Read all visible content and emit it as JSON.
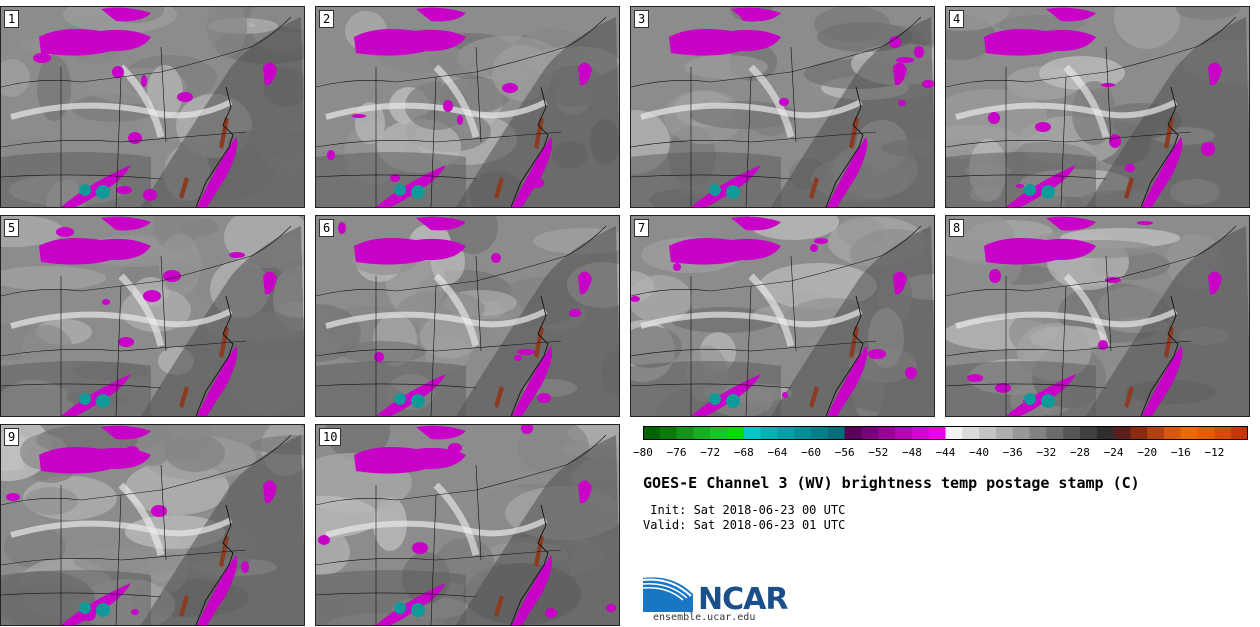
{
  "panels": [
    {
      "label": "1"
    },
    {
      "label": "2"
    },
    {
      "label": "3"
    },
    {
      "label": "4"
    },
    {
      "label": "5"
    },
    {
      "label": "6"
    },
    {
      "label": "7"
    },
    {
      "label": "8"
    },
    {
      "label": "9"
    },
    {
      "label": "10"
    }
  ],
  "colorbar": {
    "colors": [
      "#006400",
      "#0b7a0b",
      "#12931a",
      "#19ad22",
      "#14c82a",
      "#00dd00",
      "#00c8c8",
      "#00b3b3",
      "#00a0a8",
      "#008f99",
      "#007f88",
      "#006e78",
      "#5a005a",
      "#7a007a",
      "#99009a",
      "#b800b8",
      "#d400d4",
      "#ee00ee",
      "#f2f2f2",
      "#dadada",
      "#c4c4c4",
      "#aeaeae",
      "#989898",
      "#828282",
      "#6c6c6c",
      "#565656",
      "#404040",
      "#2e2e2e",
      "#5a1e1e",
      "#8a2b12",
      "#b44112",
      "#d65a0a",
      "#ea6a00",
      "#e85a00",
      "#d84a00",
      "#c43700"
    ],
    "ticks": [
      "−80",
      "−76",
      "−72",
      "−68",
      "−64",
      "−60",
      "−56",
      "−52",
      "−48",
      "−44",
      "−40",
      "−36",
      "−32",
      "−28",
      "−24",
      "−20",
      "−16",
      "−12"
    ]
  },
  "title": "GOES-E Channel 3 (WV) brightness temp postage stamp (C)",
  "init": " Init: Sat 2018-06-23 00 UTC",
  "valid": "Valid: Sat 2018-06-23 01 UTC",
  "logo": {
    "text": "NCAR",
    "url": "ensemble.ucar.edu"
  }
}
